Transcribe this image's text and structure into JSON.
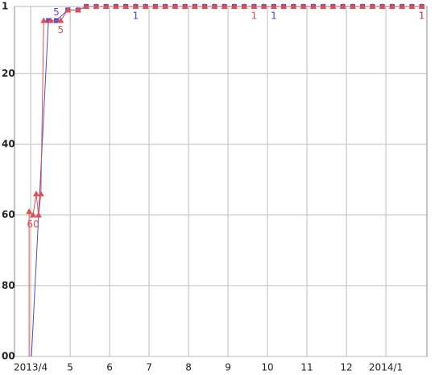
{
  "chart_data": {
    "type": "line",
    "xlim": [
      -0.41,
      10.04
    ],
    "xticks": [
      {
        "value": 0,
        "label": "2013/4"
      },
      {
        "value": 1,
        "label": "5"
      },
      {
        "value": 2,
        "label": "6"
      },
      {
        "value": 3,
        "label": "7"
      },
      {
        "value": 4,
        "label": "8"
      },
      {
        "value": 5,
        "label": "9"
      },
      {
        "value": 6,
        "label": "10"
      },
      {
        "value": 7,
        "label": "11"
      },
      {
        "value": 8,
        "label": "12"
      },
      {
        "value": 9,
        "label": "2014/1"
      }
    ],
    "ylim": [
      1,
      100
    ],
    "yticks": [
      1,
      20,
      40,
      60,
      80,
      {
        "value": 100,
        "label": "00"
      }
    ],
    "y_inverted": true,
    "grid": true,
    "series": [
      {
        "color": "#e05050",
        "marker": "triangle",
        "x": [
          -0.04,
          -0.04,
          0.06,
          0.14,
          0.2,
          0.26,
          0.33,
          0.51,
          0.76,
          0.94,
          1.2,
          1.41,
          1.66,
          1.91,
          2.16,
          2.41,
          2.66,
          2.91,
          3.16,
          3.41,
          3.66,
          3.91,
          4.16,
          4.41,
          4.66,
          4.91,
          5.16,
          5.41,
          5.66,
          5.91,
          6.16,
          6.41,
          6.66,
          6.91,
          7.16,
          7.41,
          7.66,
          7.91,
          8.16,
          8.41,
          8.66,
          8.91,
          9.16,
          9.41,
          9.66,
          9.91
        ],
        "values": [
          100,
          59,
          60,
          54,
          60,
          54,
          5,
          5,
          5,
          2,
          2,
          1,
          1,
          1,
          1,
          1,
          1,
          1,
          1,
          1,
          1,
          1,
          1,
          1,
          1,
          1,
          1,
          1,
          1,
          1,
          1,
          1,
          1,
          1,
          1,
          1,
          1,
          1,
          1,
          1,
          1,
          1,
          1,
          1,
          1,
          1
        ],
        "value_labels": [
          null,
          null,
          "60",
          null,
          null,
          null,
          null,
          null,
          "5",
          null,
          null,
          null,
          null,
          null,
          null,
          null,
          null,
          null,
          null,
          null,
          null,
          null,
          null,
          null,
          null,
          null,
          null,
          null,
          "1",
          null,
          null,
          null,
          null,
          null,
          null,
          null,
          null,
          null,
          null,
          null,
          null,
          null,
          null,
          null,
          null,
          "1"
        ]
      },
      {
        "color": "#4a4ae0",
        "marker": "square",
        "x": [
          0.02,
          0.45,
          0.65,
          0.94,
          1.2,
          1.41,
          1.66,
          1.91,
          2.16,
          2.41,
          2.66,
          2.91,
          3.16,
          3.41,
          3.66,
          3.91,
          4.16,
          4.41,
          4.66,
          4.91,
          5.16,
          5.41,
          5.66,
          5.91,
          6.16,
          6.41,
          6.66,
          6.91,
          7.16,
          7.41,
          7.66,
          7.91,
          8.16,
          8.41,
          8.66,
          8.91,
          9.16,
          9.41,
          9.66,
          9.91
        ],
        "values": [
          100,
          5,
          5,
          2,
          2,
          1,
          1,
          1,
          1,
          1,
          1,
          1,
          1,
          1,
          1,
          1,
          1,
          1,
          1,
          1,
          1,
          1,
          1,
          1,
          1,
          1,
          1,
          1,
          1,
          1,
          1,
          1,
          1,
          1,
          1,
          1,
          1,
          1,
          1,
          1
        ],
        "value_labels": [
          null,
          null,
          "5",
          null,
          null,
          null,
          null,
          null,
          null,
          null,
          "1",
          null,
          null,
          null,
          null,
          null,
          null,
          null,
          null,
          null,
          null,
          null,
          null,
          null,
          "1",
          null,
          null,
          null,
          null,
          null,
          null,
          null,
          null,
          null,
          null,
          null,
          null,
          null,
          null,
          "1"
        ]
      }
    ]
  }
}
